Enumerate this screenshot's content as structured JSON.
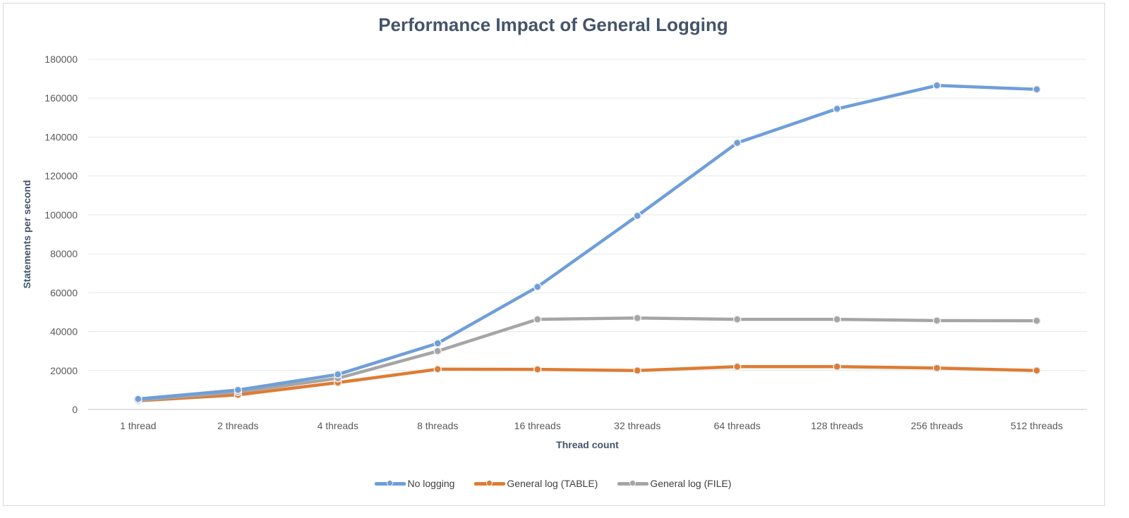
{
  "chart_data": {
    "type": "line",
    "title": "Performance Impact of General Logging",
    "xlabel": "Thread count",
    "ylabel": "Statements per second",
    "ylim": [
      0,
      180000
    ],
    "yticks": [
      "0",
      "20000",
      "40000",
      "60000",
      "80000",
      "100000",
      "120000",
      "140000",
      "160000",
      "180000"
    ],
    "grid": true,
    "legend_position": "bottom",
    "categories": [
      "1 thread",
      "2 threads",
      "4 threads",
      "8 threads",
      "16 threads",
      "32 threads",
      "64 threads",
      "128 threads",
      "256 threads",
      "512 threads"
    ],
    "series": [
      {
        "name": "No logging",
        "color": "#6f9ed9",
        "values": [
          5400,
          10000,
          18000,
          34000,
          63000,
          99500,
          137000,
          154500,
          166500,
          164500
        ]
      },
      {
        "name": "General log (TABLE)",
        "color": "#de7c34",
        "values": [
          4500,
          7500,
          13800,
          20700,
          20600,
          20000,
          22000,
          22000,
          21300,
          20000
        ]
      },
      {
        "name": "General log (FILE)",
        "color": "#a5a5a5",
        "values": [
          4700,
          9000,
          16000,
          30000,
          46300,
          47000,
          46300,
          46300,
          45700,
          45600
        ]
      }
    ]
  }
}
